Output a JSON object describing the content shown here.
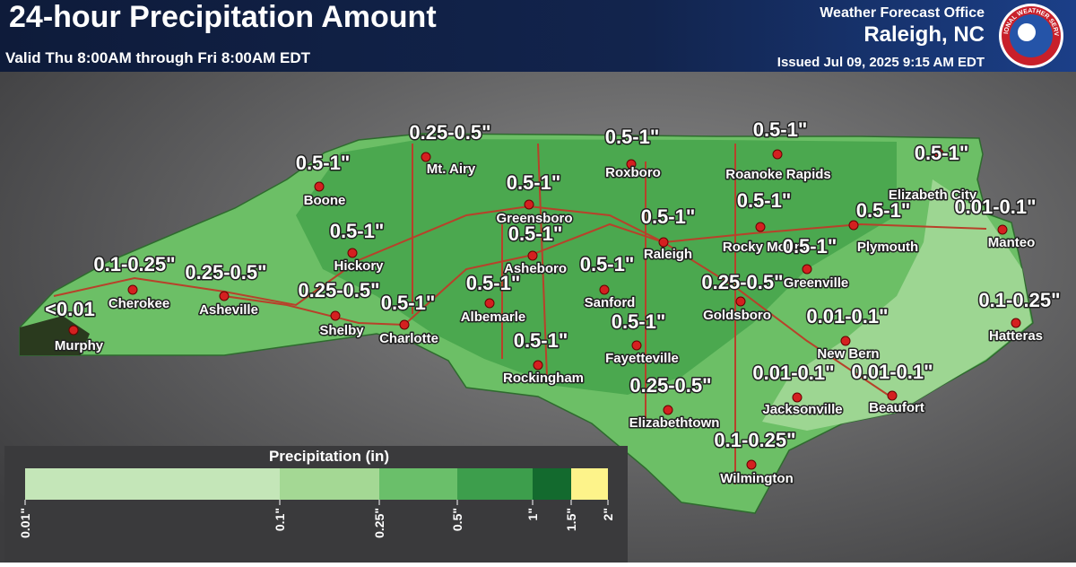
{
  "header": {
    "title": "24-hour Precipitation Amount",
    "subtitle": "Valid Thu 8:00AM through Fri 8:00AM EDT",
    "office": "Weather Forecast Office",
    "location": "Raleigh, NC",
    "issued": "Issued Jul 09, 2025 9:15 AM EDT",
    "logo_text": "NATIONAL WEATHER SERVICE"
  },
  "cities": [
    {
      "name": "Murphy",
      "amount": "<0.01"
    },
    {
      "name": "Cherokee",
      "amount": "0.1-0.25\""
    },
    {
      "name": "Asheville",
      "amount": "0.25-0.5\""
    },
    {
      "name": "Boone",
      "amount": "0.5-1\""
    },
    {
      "name": "Hickory",
      "amount": "0.5-1\""
    },
    {
      "name": "Shelby",
      "amount": "0.25-0.5\""
    },
    {
      "name": "Charlotte",
      "amount": "0.5-1\""
    },
    {
      "name": "Mt. Airy",
      "amount": "0.25-0.5\""
    },
    {
      "name": "Greensboro",
      "amount": "0.5-1\""
    },
    {
      "name": "Asheboro",
      "amount": "0.5-1\""
    },
    {
      "name": "Albemarle",
      "amount": "0.5-1\""
    },
    {
      "name": "Rockingham",
      "amount": "0.5-1\""
    },
    {
      "name": "Roxboro",
      "amount": "0.5-1\""
    },
    {
      "name": "Raleigh",
      "amount": "0.5-1\""
    },
    {
      "name": "Sanford",
      "amount": "0.5-1\""
    },
    {
      "name": "Fayetteville",
      "amount": "0.5-1\""
    },
    {
      "name": "Elizabethtown",
      "amount": "0.25-0.5\""
    },
    {
      "name": "Wilmington",
      "amount": "0.1-0.25\""
    },
    {
      "name": "Roanoke Rapids",
      "amount": "0.5-1\""
    },
    {
      "name": "Rocky Mount",
      "amount": "0.5-1\""
    },
    {
      "name": "Greenville",
      "amount": "0.5-1\""
    },
    {
      "name": "Goldsboro",
      "amount": "0.25-0.5\""
    },
    {
      "name": "Plymouth",
      "amount": "0.5-1\""
    },
    {
      "name": "Elizabeth City",
      "amount": "0.5-1\""
    },
    {
      "name": "Manteo",
      "amount": "0.01-0.1\""
    },
    {
      "name": "Hatteras",
      "amount": "0.1-0.25\""
    },
    {
      "name": "New Bern",
      "amount": "0.01-0.1\""
    },
    {
      "name": "Jacksonville",
      "amount": "0.01-0.1\""
    },
    {
      "name": "Beaufort",
      "amount": "0.01-0.1\""
    }
  ],
  "legend": {
    "title": "Precipitation (in)",
    "labels": [
      "0.01\"",
      "0.1\"",
      "0.25\"",
      "0.5\"",
      "1\"",
      "1.5\"",
      "2\""
    ]
  }
}
